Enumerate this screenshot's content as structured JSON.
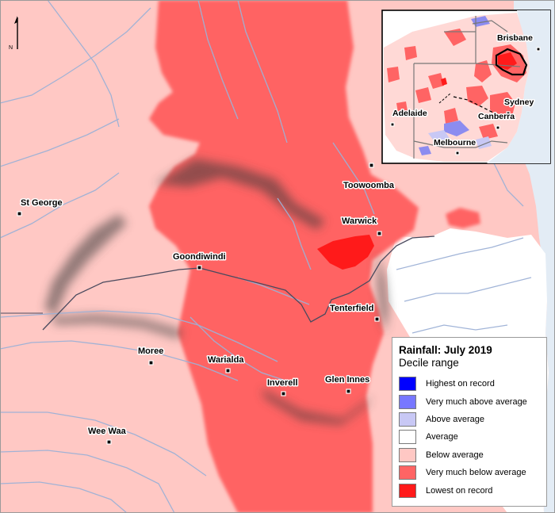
{
  "title": "Rainfall: July 2019",
  "subtitle": "Decile range",
  "legend": [
    {
      "label": "Highest on record",
      "color": "#0000ff"
    },
    {
      "label": "Very much above average",
      "color": "#7777ff"
    },
    {
      "label": "Above average",
      "color": "#c8c8f5"
    },
    {
      "label": "Average",
      "color": "#ffffff"
    },
    {
      "label": "Below average",
      "color": "#ffc8c4"
    },
    {
      "label": "Very much below average",
      "color": "#ff6464"
    },
    {
      "label": "Lowest on record",
      "color": "#ff1a1a"
    }
  ],
  "north_arrow": {
    "label": "N"
  },
  "towns": [
    "St George",
    "Goondiwindi",
    "Toowoomba",
    "Warwick",
    "Tenterfield",
    "Moree",
    "Warialda",
    "Inverell",
    "Glen Innes",
    "Wee Waa"
  ],
  "inset": {
    "cities": [
      "Brisbane",
      "Sydney",
      "Canberra",
      "Adelaide",
      "Melbourne"
    ]
  },
  "colors": {
    "ocean": "#e3ecf5",
    "river": "#9db1d6",
    "border": "#4a4a5e",
    "land_below": "#ffc8c4",
    "land_very_below": "#ff6464",
    "land_lowest": "#ff1a1a"
  }
}
